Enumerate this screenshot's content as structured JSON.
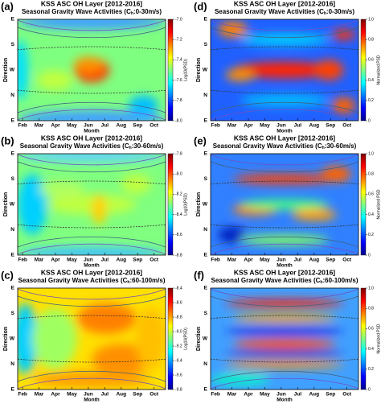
{
  "chart_data": [
    {
      "type": "heatmap",
      "panel_label": "(a)",
      "title": "KSS ASC OH Layer [2012-2016]",
      "subtitle": [
        "Seasonal Gravity Wave Activities (C",
        "h",
        ":0-30m/s)"
      ],
      "xlabel": "Month",
      "ylabel": "Direction",
      "categories": [
        "Feb",
        "Mar",
        "Apr",
        "May",
        "Jun",
        "Jul",
        "Aug",
        "Sep",
        "Oct"
      ],
      "y_categories": [
        "E",
        "S",
        "W",
        "N",
        "E"
      ],
      "colorbar_label": "Log10(PSD)",
      "colormap": "jet",
      "clim": [
        -8.0,
        -7.0
      ],
      "colorbar_ticks": [
        {
          "value": -7.0,
          "label": "-7.0"
        },
        {
          "value": -7.2,
          "label": "-7.2"
        },
        {
          "value": -7.4,
          "label": "-7.4"
        },
        {
          "value": -7.6,
          "label": "-7.6"
        },
        {
          "value": -7.8,
          "label": "-7.8"
        },
        {
          "value": -8.0,
          "label": "-8.0"
        }
      ]
    },
    {
      "type": "heatmap",
      "panel_label": "(d)",
      "title": "KSS ASC OH Layer [2012-2016]",
      "subtitle": [
        "Seasonal Gravity Wave Activities (C",
        "h",
        ":0-30m/s)"
      ],
      "xlabel": "Month",
      "ylabel": "Direction",
      "categories": [
        "Feb",
        "Mar",
        "Apr",
        "May",
        "Jun",
        "Jul",
        "Aug",
        "Sep",
        "Oct"
      ],
      "y_categories": [
        "E",
        "S",
        "W",
        "N",
        "E"
      ],
      "colorbar_label": "Normalized PSD",
      "colormap": "jet",
      "clim": [
        0,
        1
      ],
      "colorbar_ticks": [
        0,
        0.2,
        0.4,
        0.6,
        0.8,
        {
          "value": 1,
          "label": "1.0"
        }
      ]
    },
    {
      "type": "heatmap",
      "panel_label": "(b)",
      "title": "KSS ASC OH Layer [2012-2016]",
      "subtitle": [
        "Seasonal Gravity Wave Activities (C",
        "h",
        ":30-60m/s)"
      ],
      "xlabel": "Month",
      "ylabel": "Direction",
      "categories": [
        "Feb",
        "Mar",
        "Apr",
        "May",
        "Jun",
        "Jul",
        "Aug",
        "Sep",
        "Oct"
      ],
      "y_categories": [
        "E",
        "S",
        "W",
        "N",
        "E"
      ],
      "colorbar_label": "Log10(PSD)",
      "colormap": "jet",
      "clim": [
        -8.8,
        -7.8
      ],
      "colorbar_ticks": [
        {
          "value": -7.8,
          "label": "-7.8"
        },
        {
          "value": -8.0,
          "label": "-8.0"
        },
        {
          "value": -8.2,
          "label": "-8.2"
        },
        {
          "value": -8.4,
          "label": "-8.4"
        },
        {
          "value": -8.6,
          "label": "-8.6"
        },
        {
          "value": -8.8,
          "label": "-8.8"
        }
      ]
    },
    {
      "type": "heatmap",
      "panel_label": "(e)",
      "title": "KSS ASC OH Layer [2012-2016]",
      "subtitle": [
        "Seasonal Gravity Wave Activities (C",
        "h",
        ":30-60m/s)"
      ],
      "xlabel": "Month",
      "ylabel": "Direction",
      "categories": [
        "Feb",
        "Mar",
        "Apr",
        "May",
        "Jun",
        "Jul",
        "Aug",
        "Sep",
        "Oct"
      ],
      "y_categories": [
        "E",
        "S",
        "W",
        "N",
        "E"
      ],
      "colorbar_label": "Normalized PSD",
      "colormap": "jet",
      "clim": [
        0,
        1
      ],
      "colorbar_ticks": [
        0,
        0.2,
        0.4,
        0.6,
        0.8,
        {
          "value": 1,
          "label": "1.0"
        }
      ]
    },
    {
      "type": "heatmap",
      "panel_label": "(c)",
      "title": "KSS ASC OH Layer [2012-2016]",
      "subtitle": [
        "Seasonal Gravity Wave Activities (C",
        "h",
        ":60-100m/s)"
      ],
      "xlabel": "Month",
      "ylabel": "Direction",
      "categories": [
        "Feb",
        "Mar",
        "Apr",
        "May",
        "Jun",
        "Jul",
        "Aug",
        "Sep",
        "Oct"
      ],
      "y_categories": [
        "E",
        "S",
        "W",
        "N",
        "E"
      ],
      "colorbar_label": "Log10(PSD)",
      "colormap": "jet",
      "clim": [
        -9.8,
        -8.4
      ],
      "colorbar_ticks": [
        {
          "value": -8.4,
          "label": "-8.4"
        },
        {
          "value": -8.6,
          "label": "-8.6"
        },
        {
          "value": -8.8,
          "label": "-8.8"
        },
        {
          "value": -9.0,
          "label": "-9.0"
        },
        {
          "value": -9.2,
          "label": "-9.2"
        },
        {
          "value": -9.4,
          "label": "-9.4"
        },
        {
          "value": -9.6,
          "label": "-9.6"
        },
        {
          "value": -9.8,
          "label": "-9.8"
        }
      ]
    },
    {
      "type": "heatmap",
      "panel_label": "(f)",
      "title": "KSS ASC OH Layer [2012-2016]",
      "subtitle": [
        "Seasonal Gravity Wave Activities (C",
        "h",
        ":60-100m/s)"
      ],
      "xlabel": "Month",
      "ylabel": "Direction",
      "categories": [
        "Feb",
        "Mar",
        "Apr",
        "May",
        "Jun",
        "Jul",
        "Aug",
        "Sep",
        "Oct"
      ],
      "y_categories": [
        "E",
        "S",
        "W",
        "N",
        "E"
      ],
      "colorbar_label": "Normalized PSD",
      "colormap": "jet",
      "clim": [
        0,
        1
      ],
      "colorbar_ticks": [
        0,
        0.2,
        0.4,
        0.6,
        0.8,
        {
          "value": 1,
          "label": "1.0"
        }
      ]
    }
  ]
}
